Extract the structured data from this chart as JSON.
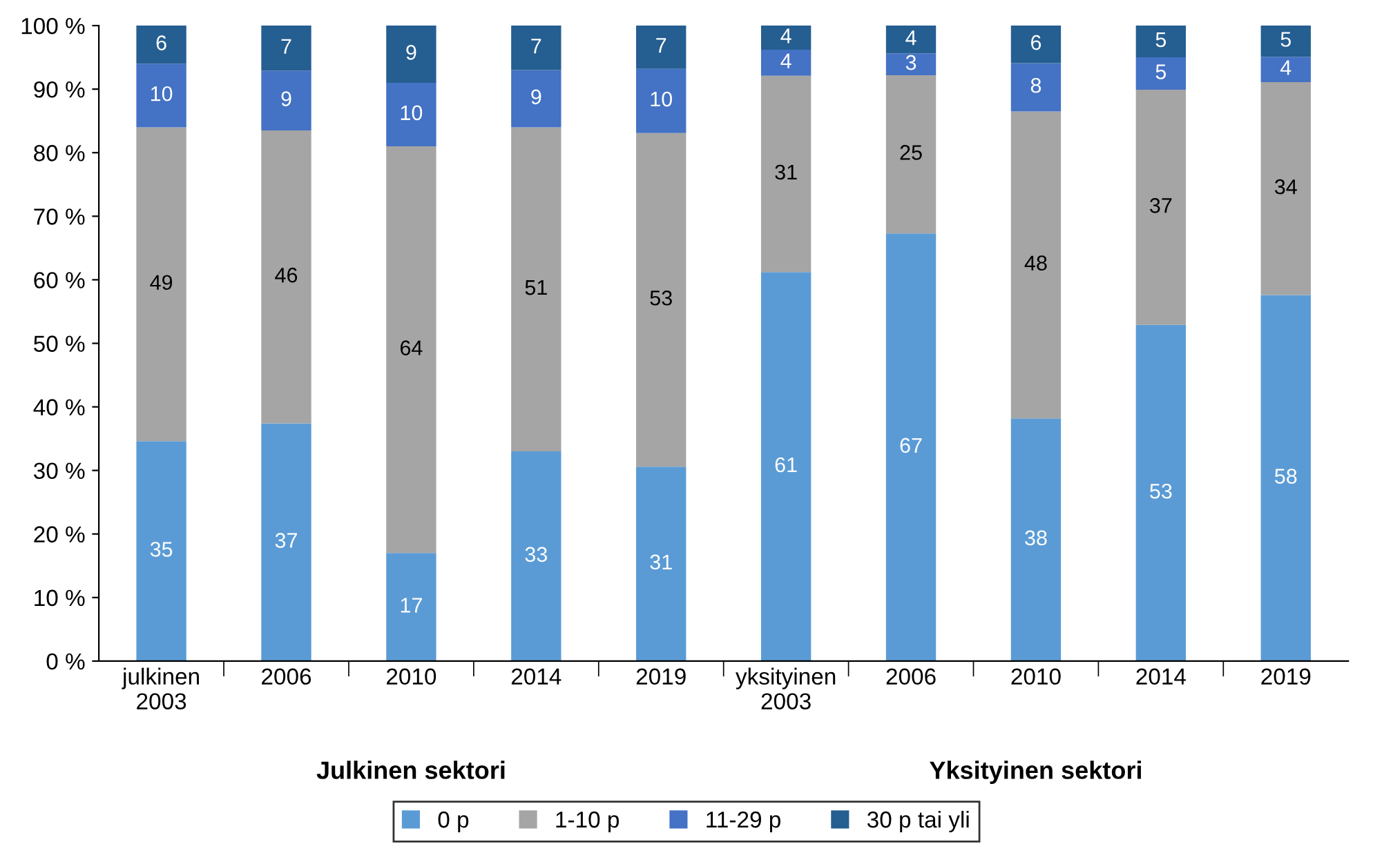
{
  "chart_data": {
    "type": "bar",
    "stacked": true,
    "categories": [
      "julkinen\n2003",
      "2006",
      "2010",
      "2014",
      "2019",
      "yksityinen\n2003",
      "2006",
      "2010",
      "2014",
      "2019"
    ],
    "series": [
      {
        "name": "0 p",
        "color": "#5b9bd5",
        "values": [
          34.6,
          37.4,
          17,
          33,
          30.6,
          61.2,
          67.3,
          38.2,
          52.9,
          57.6
        ],
        "value_labels": [
          "35",
          "37",
          "17",
          "33",
          "31",
          "61",
          "67",
          "38",
          "53",
          "58"
        ]
      },
      {
        "name": "1-10 p",
        "color": "#a5a5a5",
        "values": [
          49.4,
          46.1,
          64,
          51,
          52.5,
          30.9,
          24.9,
          48.3,
          37,
          33.5
        ],
        "value_labels": [
          "49",
          "46",
          "64",
          "51",
          "53",
          "31",
          "25",
          "48",
          "37",
          "34"
        ]
      },
      {
        "name": "11-29 p",
        "color": "#4472c4",
        "values": [
          10,
          9.4,
          10,
          9,
          10.1,
          4.1,
          3.4,
          7.6,
          5.1,
          4.0
        ],
        "value_labels": [
          "10",
          "9",
          "10",
          "9",
          "10",
          "4",
          "3",
          "8",
          "5",
          "4"
        ]
      },
      {
        "name": "30 p tai yli",
        "color": "#255e91",
        "values": [
          6,
          7.1,
          9,
          7,
          6.8,
          3.8,
          4.4,
          5.9,
          5,
          4.9
        ],
        "value_labels": [
          "6",
          "7",
          "9",
          "7",
          "7",
          "4",
          "4",
          "6",
          "5",
          "5"
        ]
      }
    ],
    "ylim": [
      0,
      100
    ],
    "yticks": [
      {
        "value": 0,
        "label": "0 %"
      },
      {
        "value": 10,
        "label": "10 %"
      },
      {
        "value": 20,
        "label": "20 %"
      },
      {
        "value": 30,
        "label": "30 %"
      },
      {
        "value": 40,
        "label": "40 %"
      },
      {
        "value": 50,
        "label": "50 %"
      },
      {
        "value": 60,
        "label": "60 %"
      },
      {
        "value": 70,
        "label": "70 %"
      },
      {
        "value": 80,
        "label": "80 %"
      },
      {
        "value": 90,
        "label": "90 %"
      },
      {
        "value": 100,
        "label": "100 %"
      }
    ],
    "annotations": [
      "Julkinen sektori",
      "Yksityinen sektori"
    ],
    "legend": "bottom",
    "grid": false
  }
}
